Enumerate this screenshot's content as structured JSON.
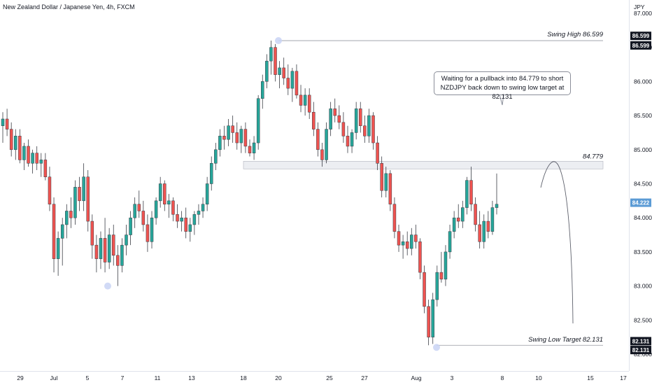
{
  "header": {
    "title": "New Zealand Dollar / Japanese Yen, 4h, FXCM"
  },
  "price_axis": {
    "currency": "JPY",
    "ticks": [
      "87.000",
      "86.500",
      "86.000",
      "85.500",
      "85.000",
      "84.500",
      "84.000",
      "83.500",
      "83.000",
      "82.500",
      "82.000"
    ],
    "current_price": "84.222",
    "high_tag": "86.599",
    "low_tag": "82.131"
  },
  "time_axis": {
    "labels": [
      "29",
      "Jul",
      "5",
      "7",
      "11",
      "13",
      "18",
      "20",
      "25",
      "27",
      "Aug",
      "3",
      "8",
      "10",
      "15",
      "17"
    ]
  },
  "annotations": {
    "swing_high": "Swing High 86.599",
    "level": "84.779",
    "swing_low": "Swing Low Target 82.131",
    "callout_line1": "Waiting for a pullback into 84.779 to short",
    "callout_line2": "NZDJPY back down to swing low target at 82.131"
  },
  "colors": {
    "up": "#26a69a",
    "down": "#ef5350",
    "current_tag": "#5b9bd5",
    "tag_dark": "#131722"
  },
  "chart_data": {
    "type": "candlestick",
    "title": "New Zealand Dollar / Japanese Yen, 4h, FXCM",
    "ylim": [
      81.85,
      87.15
    ],
    "levels": {
      "swing_high": 86.599,
      "zone": 84.779,
      "swing_low": 82.131
    },
    "candles": [
      [
        85.35,
        85.55,
        85.1,
        85.45
      ],
      [
        85.45,
        85.6,
        85.2,
        85.3
      ],
      [
        85.3,
        85.4,
        84.9,
        85.0
      ],
      [
        85.0,
        85.3,
        84.85,
        85.2
      ],
      [
        85.2,
        85.3,
        84.8,
        84.85
      ],
      [
        84.85,
        85.1,
        84.7,
        85.05
      ],
      [
        85.05,
        85.15,
        84.75,
        84.8
      ],
      [
        84.8,
        85.0,
        84.65,
        84.95
      ],
      [
        84.95,
        85.05,
        84.7,
        84.8
      ],
      [
        84.8,
        84.95,
        84.6,
        84.85
      ],
      [
        84.85,
        84.95,
        84.55,
        84.6
      ],
      [
        84.6,
        84.75,
        84.1,
        84.2
      ],
      [
        84.2,
        84.3,
        83.2,
        83.4
      ],
      [
        83.4,
        83.8,
        83.15,
        83.7
      ],
      [
        83.7,
        84.0,
        83.3,
        83.9
      ],
      [
        83.9,
        84.2,
        83.7,
        84.1
      ],
      [
        84.1,
        84.3,
        83.85,
        84.0
      ],
      [
        84.0,
        84.55,
        83.9,
        84.45
      ],
      [
        84.45,
        84.6,
        84.1,
        84.25
      ],
      [
        84.25,
        84.8,
        84.1,
        84.6
      ],
      [
        84.6,
        84.7,
        83.8,
        83.95
      ],
      [
        83.95,
        84.05,
        83.4,
        83.6
      ],
      [
        83.6,
        83.75,
        83.2,
        83.4
      ],
      [
        83.4,
        83.8,
        83.25,
        83.7
      ],
      [
        83.7,
        84.0,
        83.2,
        83.35
      ],
      [
        83.35,
        83.85,
        83.25,
        83.75
      ],
      [
        83.75,
        83.9,
        83.3,
        83.45
      ],
      [
        83.45,
        83.6,
        83.0,
        83.3
      ],
      [
        83.3,
        83.7,
        83.2,
        83.6
      ],
      [
        83.6,
        83.9,
        83.45,
        83.75
      ],
      [
        83.75,
        84.1,
        83.6,
        84.0
      ],
      [
        84.0,
        84.3,
        83.85,
        84.2
      ],
      [
        84.2,
        84.4,
        84.0,
        84.1
      ],
      [
        84.1,
        84.25,
        83.8,
        83.9
      ],
      [
        83.9,
        84.05,
        83.5,
        83.65
      ],
      [
        83.65,
        84.1,
        83.55,
        84.0
      ],
      [
        84.0,
        84.3,
        83.9,
        84.25
      ],
      [
        84.25,
        84.6,
        84.15,
        84.5
      ],
      [
        84.5,
        84.55,
        84.1,
        84.2
      ],
      [
        84.2,
        84.35,
        84.0,
        84.25
      ],
      [
        84.25,
        84.3,
        83.95,
        84.05
      ],
      [
        84.05,
        84.2,
        83.85,
        83.95
      ],
      [
        83.95,
        84.1,
        83.8,
        84.0
      ],
      [
        84.0,
        84.15,
        83.7,
        83.8
      ],
      [
        83.8,
        84.0,
        83.65,
        83.9
      ],
      [
        83.9,
        84.1,
        83.75,
        84.05
      ],
      [
        84.05,
        84.2,
        83.9,
        84.1
      ],
      [
        84.1,
        84.3,
        84.0,
        84.2
      ],
      [
        84.2,
        84.6,
        84.1,
        84.5
      ],
      [
        84.5,
        84.9,
        84.4,
        84.8
      ],
      [
        84.8,
        85.1,
        84.7,
        85.0
      ],
      [
        85.0,
        85.3,
        84.9,
        85.2
      ],
      [
        85.2,
        85.35,
        85.0,
        85.15
      ],
      [
        85.15,
        85.45,
        85.05,
        85.35
      ],
      [
        85.35,
        85.5,
        85.1,
        85.25
      ],
      [
        85.25,
        85.4,
        85.0,
        85.1
      ],
      [
        85.1,
        85.35,
        84.95,
        85.3
      ],
      [
        85.3,
        85.4,
        84.95,
        85.05
      ],
      [
        85.05,
        85.15,
        84.9,
        84.95
      ],
      [
        84.95,
        85.2,
        84.85,
        85.1
      ],
      [
        85.1,
        85.8,
        85.0,
        85.75
      ],
      [
        85.75,
        86.1,
        85.6,
        86.0
      ],
      [
        86.0,
        86.4,
        85.9,
        86.3
      ],
      [
        86.3,
        86.599,
        86.1,
        86.5
      ],
      [
        86.5,
        86.55,
        86.0,
        86.1
      ],
      [
        86.1,
        86.3,
        85.9,
        86.2
      ],
      [
        86.2,
        86.35,
        85.95,
        86.05
      ],
      [
        86.05,
        86.25,
        85.8,
        85.9
      ],
      [
        85.9,
        86.2,
        85.7,
        86.15
      ],
      [
        86.15,
        86.25,
        85.75,
        85.8
      ],
      [
        85.8,
        85.95,
        85.55,
        85.65
      ],
      [
        85.65,
        85.9,
        85.5,
        85.8
      ],
      [
        85.8,
        85.9,
        85.45,
        85.55
      ],
      [
        85.55,
        85.7,
        85.2,
        85.3
      ],
      [
        85.3,
        85.4,
        84.9,
        85.0
      ],
      [
        85.0,
        85.1,
        84.75,
        84.85
      ],
      [
        84.85,
        85.4,
        84.8,
        85.3
      ],
      [
        85.3,
        85.7,
        85.2,
        85.6
      ],
      [
        85.6,
        85.75,
        85.4,
        85.5
      ],
      [
        85.5,
        85.65,
        85.3,
        85.4
      ],
      [
        85.4,
        85.55,
        85.1,
        85.2
      ],
      [
        85.2,
        85.35,
        84.95,
        85.05
      ],
      [
        85.05,
        85.3,
        84.95,
        85.25
      ],
      [
        85.25,
        85.7,
        85.15,
        85.6
      ],
      [
        85.6,
        85.7,
        85.25,
        85.35
      ],
      [
        85.35,
        85.5,
        85.1,
        85.2
      ],
      [
        85.2,
        85.6,
        85.1,
        85.5
      ],
      [
        85.5,
        85.55,
        85.0,
        85.1
      ],
      [
        85.1,
        85.2,
        84.7,
        84.8
      ],
      [
        84.8,
        84.9,
        84.3,
        84.4
      ],
      [
        84.4,
        84.75,
        84.3,
        84.65
      ],
      [
        84.65,
        84.7,
        84.1,
        84.2
      ],
      [
        84.2,
        84.3,
        83.7,
        83.8
      ],
      [
        83.8,
        83.9,
        83.5,
        83.6
      ],
      [
        83.6,
        83.75,
        83.4,
        83.65
      ],
      [
        83.65,
        83.8,
        83.45,
        83.55
      ],
      [
        83.55,
        83.85,
        83.45,
        83.75
      ],
      [
        83.75,
        83.9,
        83.55,
        83.65
      ],
      [
        83.65,
        83.7,
        83.1,
        83.2
      ],
      [
        83.2,
        83.3,
        82.6,
        82.7
      ],
      [
        82.7,
        82.8,
        82.131,
        82.25
      ],
      [
        82.25,
        82.9,
        82.15,
        82.8
      ],
      [
        82.8,
        83.3,
        82.7,
        83.2
      ],
      [
        83.2,
        83.5,
        83.05,
        83.1
      ],
      [
        83.1,
        83.6,
        83.0,
        83.5
      ],
      [
        83.5,
        83.9,
        83.4,
        83.8
      ],
      [
        83.8,
        84.1,
        83.7,
        84.0
      ],
      [
        84.0,
        84.2,
        83.85,
        83.95
      ],
      [
        83.95,
        84.25,
        83.85,
        84.15
      ],
      [
        84.15,
        84.6,
        84.05,
        84.55
      ],
      [
        84.55,
        84.75,
        84.1,
        84.2
      ],
      [
        84.2,
        84.3,
        83.8,
        83.9
      ],
      [
        83.9,
        84.1,
        83.55,
        83.65
      ],
      [
        83.65,
        84.05,
        83.55,
        83.95
      ],
      [
        83.95,
        84.1,
        83.7,
        83.8
      ],
      [
        83.8,
        84.25,
        83.75,
        84.15
      ],
      [
        84.15,
        84.65,
        84.05,
        84.2
      ]
    ],
    "projection": "curved path from 84.779 down toward 82.131"
  }
}
